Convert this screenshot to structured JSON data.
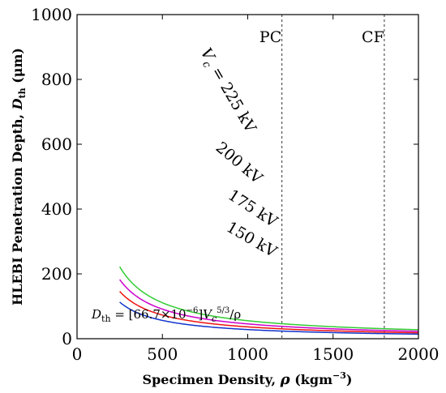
{
  "chart_data": {
    "type": "line",
    "xlabel_main": "Specimen Density, ",
    "xlabel_sym": "ρ",
    "xlabel_unit": " (kgm",
    "xlabel_exp": "−3",
    "xlabel_close": ")",
    "ylabel_main": "HLEBI Penetration Depth, ",
    "ylabel_sym": "D",
    "ylabel_sub": "th",
    "ylabel_unit": " (μm)",
    "xlim": [
      0,
      2000
    ],
    "ylim": [
      0,
      1000
    ],
    "xticks": [
      0,
      500,
      1000,
      1500,
      2000
    ],
    "yticks": [
      0,
      200,
      400,
      600,
      800,
      1000
    ],
    "grid": false,
    "formula": {
      "lhs_sym": "D",
      "lhs_sub": "th",
      "mid": " = [66.7×10",
      "exp1": "−6",
      "bracket": "]",
      "vsym": "V",
      "vsub": "c",
      "exp2": "5/3",
      "tail": "/ρ"
    },
    "coefficient": 6.67e-05,
    "x_start": 250,
    "x_end": 2000,
    "series": [
      {
        "name": "225 kV",
        "prefix_sym": "V",
        "prefix_sub": "c",
        "prefix_eq": " = ",
        "voltage_kV": 225,
        "color": "#33cc33"
      },
      {
        "name": "200 kV",
        "voltage_kV": 200,
        "color": "#cc00cc"
      },
      {
        "name": "175 kV",
        "voltage_kV": 175,
        "color": "#ee1111"
      },
      {
        "name": "150 kV",
        "voltage_kV": 150,
        "color": "#1133cc"
      }
    ],
    "reference_lines": [
      {
        "label": "PC",
        "x": 1200
      },
      {
        "label": "CF",
        "x": 1800
      }
    ]
  }
}
